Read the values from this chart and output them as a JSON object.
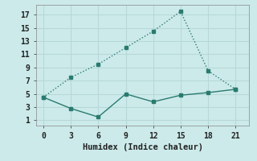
{
  "line1_x": [
    0,
    3,
    6,
    9,
    12,
    15,
    18,
    21
  ],
  "line1_y": [
    4.5,
    7.5,
    9.5,
    12.0,
    14.5,
    17.5,
    8.5,
    5.7
  ],
  "line2_x": [
    0,
    3,
    6,
    9,
    12,
    15,
    18,
    21
  ],
  "line2_y": [
    4.5,
    2.8,
    1.5,
    5.0,
    3.8,
    4.8,
    5.2,
    5.7
  ],
  "line_color": "#2a7b6f",
  "bg_color": "#cceaea",
  "grid_color": "#b8d8d8",
  "xlabel": "Humidex (Indice chaleur)",
  "xlabel_fontsize": 7.5,
  "xticks": [
    0,
    3,
    6,
    9,
    12,
    15,
    18,
    21
  ],
  "yticks": [
    1,
    3,
    5,
    7,
    9,
    11,
    13,
    15,
    17
  ],
  "xlim": [
    -0.8,
    22.5
  ],
  "ylim": [
    0.2,
    18.5
  ],
  "markersize": 3.5,
  "linewidth": 1.0
}
